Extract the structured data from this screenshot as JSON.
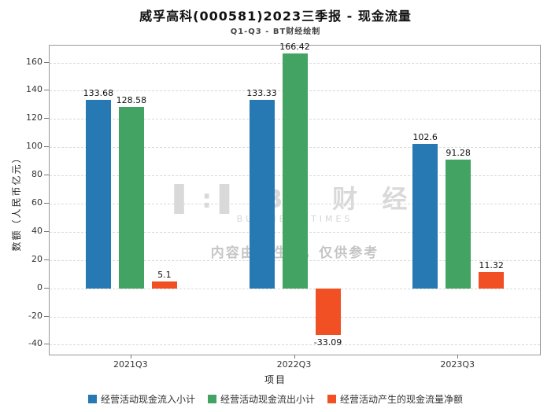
{
  "title": "威孚高科(000581)2023三季报 - 现金流量",
  "subtitle": "Q1-Q3 - BT财经绘制",
  "watermark": {
    "logo_mark": "▌:▌",
    "logo_text": "BT 财 经",
    "logo_sub": "BUSINESS TIMES",
    "disclaimer": "内容由AI生成，仅供参考"
  },
  "chart_data": {
    "type": "bar",
    "title": "威孚高科(000581)2023三季报 - 现金流量",
    "subtitle": "Q1-Q3 - BT财经绘制",
    "categories": [
      "2021Q3",
      "2022Q3",
      "2023Q3"
    ],
    "series": [
      {
        "name": "经营活动现金流入小计",
        "color": "#2679b2",
        "values": [
          133.68,
          133.33,
          102.6
        ]
      },
      {
        "name": "经营活动现金流出小计",
        "color": "#42a362",
        "values": [
          128.58,
          166.42,
          91.28
        ]
      },
      {
        "name": "经营活动产生的现金流量净额",
        "color": "#f05023",
        "values": [
          5.1,
          -33.09,
          11.32
        ]
      }
    ],
    "xlabel": "项目",
    "ylabel": "数额（人民币亿元）",
    "ylim": [
      -47,
      172
    ],
    "yticks": [
      -40,
      -20,
      0,
      20,
      40,
      60,
      80,
      100,
      120,
      140,
      160
    ],
    "grid": true,
    "legend_position": "bottom"
  }
}
